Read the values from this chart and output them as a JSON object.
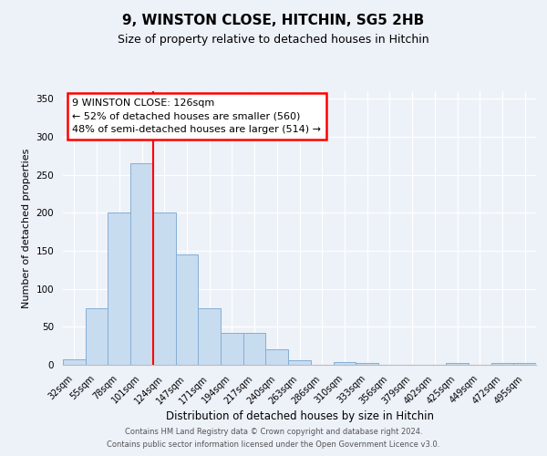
{
  "title": "9, WINSTON CLOSE, HITCHIN, SG5 2HB",
  "subtitle": "Size of property relative to detached houses in Hitchin",
  "xlabel": "Distribution of detached houses by size in Hitchin",
  "ylabel": "Number of detached properties",
  "bar_labels": [
    "32sqm",
    "55sqm",
    "78sqm",
    "101sqm",
    "124sqm",
    "147sqm",
    "171sqm",
    "194sqm",
    "217sqm",
    "240sqm",
    "263sqm",
    "286sqm",
    "310sqm",
    "333sqm",
    "356sqm",
    "379sqm",
    "402sqm",
    "425sqm",
    "449sqm",
    "472sqm",
    "495sqm"
  ],
  "bar_values": [
    7,
    75,
    200,
    265,
    200,
    145,
    75,
    42,
    42,
    20,
    6,
    0,
    4,
    2,
    0,
    0,
    0,
    2,
    0,
    2,
    2
  ],
  "bar_color": "#c8dcf0",
  "bar_edge_color": "#85aed4",
  "vline_index": 4,
  "vline_color": "red",
  "ylim_max": 360,
  "yticks": [
    0,
    50,
    100,
    150,
    200,
    250,
    300,
    350
  ],
  "annotation_line1": "9 WINSTON CLOSE: 126sqm",
  "annotation_line2": "← 52% of detached houses are smaller (560)",
  "annotation_line3": "48% of semi-detached houses are larger (514) →",
  "footer1": "Contains HM Land Registry data © Crown copyright and database right 2024.",
  "footer2": "Contains public sector information licensed under the Open Government Licence v3.0.",
  "bg_color": "#edf1f8",
  "grid_color": "#ffffff",
  "title_fontsize": 11,
  "subtitle_fontsize": 9,
  "tick_fontsize": 7,
  "ylabel_fontsize": 8,
  "xlabel_fontsize": 8.5,
  "annotation_fontsize": 8,
  "footer_fontsize": 6
}
